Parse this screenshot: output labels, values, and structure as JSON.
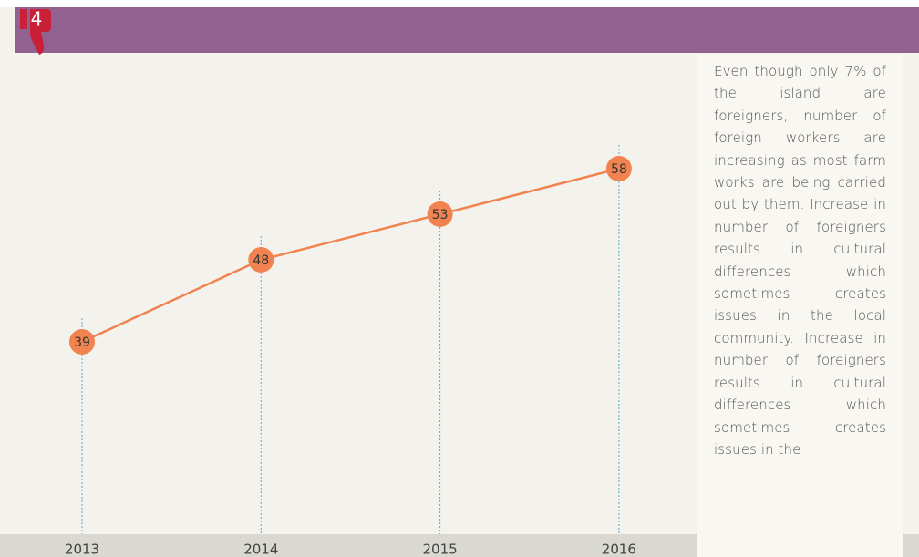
{
  "header": {
    "number": "4"
  },
  "chart_data": {
    "type": "line",
    "categories": [
      "2013",
      "2014",
      "2015",
      "2016"
    ],
    "values": [
      39,
      48,
      53,
      58
    ],
    "color": "#f0834f"
  },
  "description": "Even though only 7% of the island are foreigners, number of foreign workers are increasing as most farm works are being carried out by them. Increase in number of foreigners results in cultural differences which sometimes creates issues in the local community. Increase in number of foreigners results in cultural differences which sometimes creates issues in the"
}
